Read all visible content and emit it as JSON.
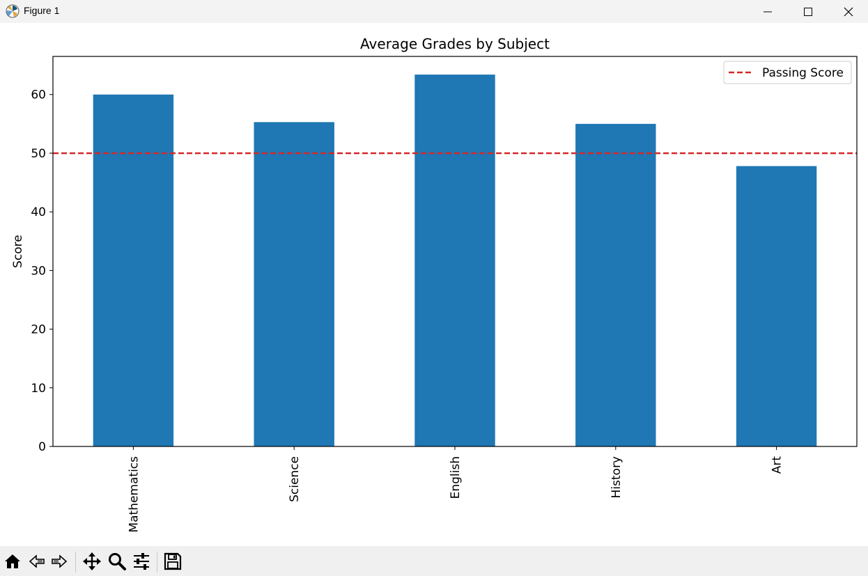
{
  "window": {
    "title": "Figure 1",
    "controls": [
      "minimize",
      "maximize",
      "close"
    ]
  },
  "chart_data": {
    "type": "bar",
    "title": "Average Grades by Subject",
    "xlabel": "",
    "ylabel": "Score",
    "categories": [
      "Mathematics",
      "Science",
      "English",
      "History",
      "Art"
    ],
    "values": [
      60.0,
      55.3,
      63.4,
      55.0,
      47.8
    ],
    "bar_color": "#1f77b4",
    "ylim": [
      0,
      66.5
    ],
    "yticks": [
      0,
      10,
      20,
      30,
      40,
      50,
      60
    ],
    "reference_line": {
      "label": "Passing Score",
      "value": 50,
      "color": "#d62728",
      "style": "dashed"
    },
    "legend": {
      "position": "upper-right",
      "entries": [
        "Passing Score"
      ]
    },
    "grid": false
  },
  "toolbar": {
    "tools": [
      "home-icon",
      "back-arrow-icon",
      "forward-arrow-icon",
      "pan-icon",
      "zoom-icon",
      "configure-subplots-icon",
      "save-icon"
    ]
  }
}
